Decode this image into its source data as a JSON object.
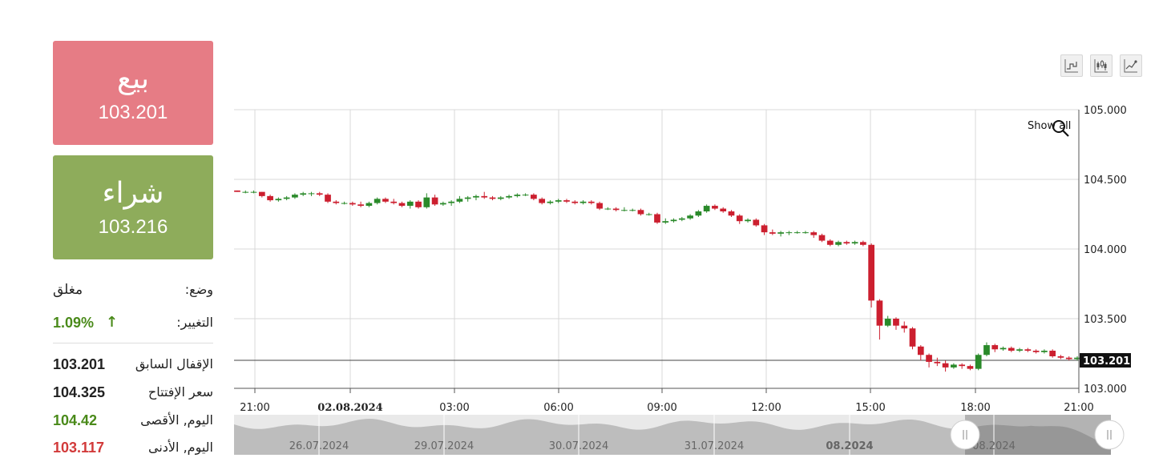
{
  "sell": {
    "title": "بيع",
    "price": "103.201"
  },
  "buy": {
    "title": "شراء",
    "price": "103.216"
  },
  "info": {
    "status_label": "وضع:",
    "status_value": "مغلق",
    "change_label": "التغيير:",
    "change_value": "1.09%",
    "change_arrow": "↑",
    "prev_close_label": "الإقفال السابق",
    "prev_close_value": "103.201",
    "open_label": "سعر الإفتتاح",
    "open_value": "104.325",
    "high_label": "اليوم, الأقصى",
    "high_value": "104.42",
    "low_label": "اليوم, الأدنى",
    "low_value": "103.117"
  },
  "colors": {
    "sell_bg": "#e67c85",
    "buy_bg": "#8eac5b",
    "up_candle": "#2a8a2a",
    "down_candle": "#cc1f2f",
    "change_positive": "#4a8a1a",
    "low_value": "#d23a3a"
  },
  "toolbar": {
    "buttons": [
      "step-line-chart-icon",
      "candlestick-chart-icon",
      "line-chart-icon"
    ],
    "show_all_label": "Show all",
    "zoom_icon": "magnifier-icon"
  },
  "chart_data": {
    "type": "candlestick",
    "ylim": [
      103.0,
      105.0
    ],
    "y_ticks": [
      "105.000",
      "104.500",
      "104.000",
      "103.500",
      "103.000"
    ],
    "x_ticks": [
      "21:00",
      "02.08.2024",
      "03:00",
      "06:00",
      "09:00",
      "12:00",
      "15:00",
      "18:00",
      "21:00"
    ],
    "x_ticks_bold": [
      false,
      true,
      false,
      false,
      false,
      false,
      false,
      false,
      false
    ],
    "current_price_label": "103.201",
    "current_price": 103.201,
    "candles": [
      [
        104.42,
        104.42,
        104.41,
        104.41
      ],
      [
        104.41,
        104.42,
        104.4,
        104.41
      ],
      [
        104.41,
        104.42,
        104.4,
        104.41
      ],
      [
        104.41,
        104.41,
        104.37,
        104.38
      ],
      [
        104.38,
        104.39,
        104.34,
        104.35
      ],
      [
        104.35,
        104.37,
        104.34,
        104.36
      ],
      [
        104.36,
        104.38,
        104.35,
        104.37
      ],
      [
        104.37,
        104.4,
        104.36,
        104.39
      ],
      [
        104.39,
        104.41,
        104.38,
        104.4
      ],
      [
        104.4,
        104.41,
        104.38,
        104.4
      ],
      [
        104.4,
        104.41,
        104.38,
        104.39
      ],
      [
        104.39,
        104.4,
        104.33,
        104.34
      ],
      [
        104.34,
        104.35,
        104.32,
        104.33
      ],
      [
        104.33,
        104.34,
        104.32,
        104.33
      ],
      [
        104.33,
        104.34,
        104.31,
        104.32
      ],
      [
        104.32,
        104.34,
        104.3,
        104.31
      ],
      [
        104.31,
        104.34,
        104.3,
        104.33
      ],
      [
        104.33,
        104.37,
        104.32,
        104.36
      ],
      [
        104.36,
        104.37,
        104.33,
        104.34
      ],
      [
        104.34,
        104.36,
        104.32,
        104.33
      ],
      [
        104.33,
        104.34,
        104.3,
        104.31
      ],
      [
        104.31,
        104.35,
        104.29,
        104.34
      ],
      [
        104.34,
        104.35,
        104.29,
        104.3
      ],
      [
        104.3,
        104.4,
        104.29,
        104.37
      ],
      [
        104.37,
        104.39,
        104.31,
        104.32
      ],
      [
        104.32,
        104.34,
        104.31,
        104.33
      ],
      [
        104.33,
        104.35,
        104.31,
        104.34
      ],
      [
        104.34,
        104.38,
        104.33,
        104.36
      ],
      [
        104.36,
        104.38,
        104.34,
        104.37
      ],
      [
        104.37,
        104.39,
        104.35,
        104.38
      ],
      [
        104.38,
        104.41,
        104.36,
        104.37
      ],
      [
        104.37,
        104.38,
        104.35,
        104.36
      ],
      [
        104.36,
        104.38,
        104.35,
        104.37
      ],
      [
        104.37,
        104.39,
        104.36,
        104.38
      ],
      [
        104.38,
        104.4,
        104.37,
        104.39
      ],
      [
        104.39,
        104.4,
        104.38,
        104.39
      ],
      [
        104.39,
        104.4,
        104.35,
        104.36
      ],
      [
        104.36,
        104.37,
        104.32,
        104.33
      ],
      [
        104.33,
        104.35,
        104.32,
        104.34
      ],
      [
        104.34,
        104.36,
        104.33,
        104.35
      ],
      [
        104.35,
        104.36,
        104.33,
        104.34
      ],
      [
        104.34,
        104.35,
        104.32,
        104.33
      ],
      [
        104.33,
        104.35,
        104.32,
        104.34
      ],
      [
        104.34,
        104.35,
        104.32,
        104.33
      ],
      [
        104.33,
        104.34,
        104.28,
        104.29
      ],
      [
        104.29,
        104.3,
        104.28,
        104.29
      ],
      [
        104.29,
        104.3,
        104.27,
        104.28
      ],
      [
        104.28,
        104.3,
        104.27,
        104.28
      ],
      [
        104.28,
        104.29,
        104.27,
        104.28
      ],
      [
        104.28,
        104.29,
        104.24,
        104.25
      ],
      [
        104.25,
        104.26,
        104.24,
        104.25
      ],
      [
        104.25,
        104.26,
        104.18,
        104.19
      ],
      [
        104.19,
        104.22,
        104.18,
        104.2
      ],
      [
        104.2,
        104.22,
        104.19,
        104.21
      ],
      [
        104.21,
        104.23,
        104.2,
        104.22
      ],
      [
        104.22,
        104.25,
        104.21,
        104.24
      ],
      [
        104.24,
        104.28,
        104.23,
        104.27
      ],
      [
        104.27,
        104.32,
        104.26,
        104.31
      ],
      [
        104.31,
        104.32,
        104.28,
        104.29
      ],
      [
        104.29,
        104.3,
        104.26,
        104.27
      ],
      [
        104.27,
        104.28,
        104.23,
        104.24
      ],
      [
        104.24,
        104.25,
        104.18,
        104.2
      ],
      [
        104.2,
        104.22,
        104.19,
        104.21
      ],
      [
        104.21,
        104.22,
        104.16,
        104.17
      ],
      [
        104.17,
        104.18,
        104.1,
        104.12
      ],
      [
        104.12,
        104.14,
        104.1,
        104.11
      ],
      [
        104.11,
        104.13,
        104.09,
        104.12
      ],
      [
        104.12,
        104.13,
        104.1,
        104.12
      ],
      [
        104.12,
        104.13,
        104.11,
        104.12
      ],
      [
        104.12,
        104.13,
        104.11,
        104.12
      ],
      [
        104.12,
        104.13,
        104.08,
        104.1
      ],
      [
        104.1,
        104.11,
        104.05,
        104.06
      ],
      [
        104.06,
        104.07,
        104.02,
        104.03
      ],
      [
        104.03,
        104.06,
        104.02,
        104.05
      ],
      [
        104.05,
        104.06,
        104.03,
        104.04
      ],
      [
        104.04,
        104.06,
        104.03,
        104.05
      ],
      [
        104.05,
        104.06,
        104.02,
        104.03
      ],
      [
        104.03,
        104.04,
        103.58,
        103.63
      ],
      [
        103.63,
        103.64,
        103.35,
        103.45
      ],
      [
        103.45,
        103.52,
        103.44,
        103.5
      ],
      [
        103.5,
        103.51,
        103.42,
        103.45
      ],
      [
        103.45,
        103.48,
        103.4,
        103.43
      ],
      [
        103.43,
        103.44,
        103.28,
        103.3
      ],
      [
        103.3,
        103.31,
        103.2,
        103.24
      ],
      [
        103.24,
        103.25,
        103.15,
        103.19
      ],
      [
        103.19,
        103.22,
        103.16,
        103.18
      ],
      [
        103.18,
        103.2,
        103.12,
        103.15
      ],
      [
        103.15,
        103.18,
        103.14,
        103.17
      ],
      [
        103.17,
        103.18,
        103.14,
        103.16
      ],
      [
        103.16,
        103.17,
        103.13,
        103.14
      ],
      [
        103.14,
        103.25,
        103.13,
        103.24
      ],
      [
        103.24,
        103.33,
        103.23,
        103.31
      ],
      [
        103.31,
        103.32,
        103.26,
        103.28
      ],
      [
        103.28,
        103.3,
        103.27,
        103.29
      ],
      [
        103.29,
        103.3,
        103.26,
        103.27
      ],
      [
        103.27,
        103.29,
        103.26,
        103.28
      ],
      [
        103.28,
        103.29,
        103.26,
        103.27
      ],
      [
        103.27,
        103.28,
        103.25,
        103.26
      ],
      [
        103.26,
        103.28,
        103.25,
        103.27
      ],
      [
        103.27,
        103.28,
        103.22,
        103.23
      ],
      [
        103.23,
        103.24,
        103.21,
        103.22
      ],
      [
        103.22,
        103.23,
        103.2,
        103.21
      ],
      [
        103.21,
        103.23,
        103.2,
        103.22
      ]
    ]
  },
  "navigator": {
    "labels": [
      "26.07.2024",
      "29.07.2024",
      "30.07.2024",
      "31.07.2024",
      "08.2024",
      "08.2024"
    ],
    "labels_bold": [
      false,
      false,
      false,
      false,
      true,
      false
    ],
    "handle_left_icon": "drag-handle-icon",
    "handle_right_icon": "drag-handle-icon"
  }
}
